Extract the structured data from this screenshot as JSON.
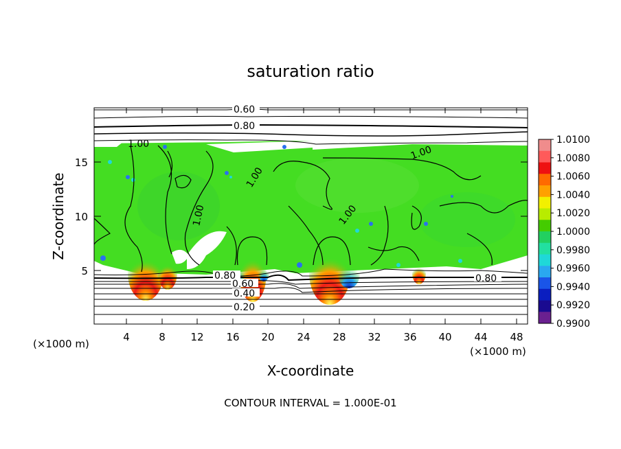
{
  "chart_data": {
    "type": "heatmap",
    "title": "saturation ratio",
    "xlabel": "X-coordinate",
    "ylabel": "Z-coordinate",
    "x_unit": "(×1000 m)",
    "y_unit": "(×1000 m)",
    "xlim": [
      0,
      50
    ],
    "ylim": [
      0,
      20
    ],
    "xticks": [
      "4",
      "8",
      "12",
      "16",
      "20",
      "24",
      "28",
      "32",
      "36",
      "40",
      "44",
      "48"
    ],
    "yticks": [
      "5",
      "10",
      "15"
    ],
    "colorbar": {
      "labels": [
        "1.0100",
        "1.0080",
        "1.0060",
        "1.0040",
        "1.0020",
        "1.0000",
        "0.9980",
        "0.9960",
        "0.9940",
        "0.9920",
        "0.9900"
      ],
      "colors": [
        "#f08c8c",
        "#ff5a5a",
        "#ee1111",
        "#ff6a00",
        "#ffa000",
        "#f2f000",
        "#b8ec00",
        "#44cc00",
        "#22d060",
        "#22e0a0",
        "#1fd8d8",
        "#2aa8f0",
        "#1a55e8",
        "#0a1ec0",
        "#1a0a90",
        "#6a2090"
      ]
    },
    "contour_labels": [
      "0.60",
      "0.80",
      "1.00",
      "1.00",
      "1.00",
      "1.00",
      "1.00",
      "0.80",
      "0.60",
      "0.40",
      "0.20",
      "0.80"
    ],
    "annotation": "CONTOUR INTERVAL = 1.000E-01",
    "background_color": "#44dd22",
    "grid": false
  }
}
